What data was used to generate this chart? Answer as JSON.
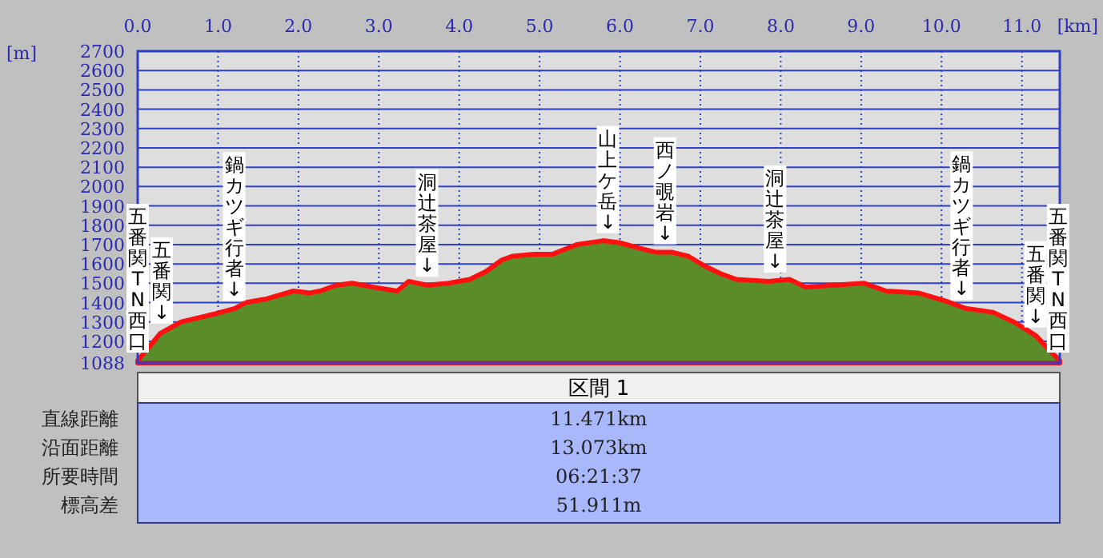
{
  "chart_data": {
    "type": "area",
    "xlabel": "[km]",
    "ylabel": "[m]",
    "xlim": [
      0,
      11.471
    ],
    "ylim": [
      1088,
      2700
    ],
    "xticks": [
      {
        "value": 0,
        "label": "0.0"
      },
      {
        "value": 1,
        "label": "1.0"
      },
      {
        "value": 2,
        "label": "2.0"
      },
      {
        "value": 3,
        "label": "3.0"
      },
      {
        "value": 4,
        "label": "4.0"
      },
      {
        "value": 5,
        "label": "5.0"
      },
      {
        "value": 6,
        "label": "6.0"
      },
      {
        "value": 7,
        "label": "7.0"
      },
      {
        "value": 8,
        "label": "8.0"
      },
      {
        "value": 9,
        "label": "9.0"
      },
      {
        "value": 10,
        "label": "10.0"
      },
      {
        "value": 11,
        "label": "11.0"
      }
    ],
    "yticks": [
      1088,
      1200,
      1300,
      1400,
      1500,
      1600,
      1700,
      1800,
      1900,
      2000,
      2100,
      2200,
      2300,
      2400,
      2500,
      2600,
      2700
    ],
    "grid": true,
    "x": [
      0,
      0.28,
      0.54,
      0.94,
      1.21,
      1.34,
      1.61,
      1.94,
      2.14,
      2.27,
      2.47,
      2.67,
      2.93,
      3.23,
      3.37,
      3.6,
      3.87,
      4.13,
      4.33,
      4.53,
      4.66,
      4.93,
      5.16,
      5.46,
      5.79,
      5.99,
      6.26,
      6.45,
      6.65,
      6.85,
      7.05,
      7.25,
      7.45,
      7.85,
      8.11,
      8.31,
      8.65,
      9.04,
      9.31,
      9.71,
      10.04,
      10.3,
      10.64,
      10.9,
      11.17,
      11.4,
      11.471
    ],
    "series": [
      {
        "color": "#5b8c2a",
        "values": [
          1100,
          1240,
          1300,
          1340,
          1370,
          1400,
          1420,
          1460,
          1450,
          1460,
          1490,
          1500,
          1480,
          1460,
          1510,
          1490,
          1500,
          1520,
          1560,
          1620,
          1640,
          1650,
          1650,
          1700,
          1720,
          1710,
          1680,
          1660,
          1660,
          1640,
          1590,
          1550,
          1520,
          1510,
          1520,
          1480,
          1490,
          1500,
          1460,
          1450,
          1410,
          1370,
          1350,
          1300,
          1230,
          1130,
          1100
        ]
      }
    ],
    "annotations": [
      {
        "text": "五番関TN西口",
        "x": 0,
        "y": 1100
      },
      {
        "text": "五番関↓",
        "x": 0.3,
        "y": 1250
      },
      {
        "text": "鍋カツギ行者↓",
        "x": 1.2,
        "y": 1368
      },
      {
        "text": "洞辻茶屋↓",
        "x": 3.6,
        "y": 1492
      },
      {
        "text": "山上ケ岳↓",
        "x": 5.85,
        "y": 1718
      },
      {
        "text": "西ノ覗岩↓",
        "x": 6.56,
        "y": 1660
      },
      {
        "text": "洞辻茶屋↓",
        "x": 7.93,
        "y": 1513
      },
      {
        "text": "鍋カツギ行者↓",
        "x": 10.25,
        "y": 1372
      },
      {
        "text": "五番関↓",
        "x": 11.17,
        "y": 1230
      },
      {
        "text": "五番関TN西口",
        "x": 11.45,
        "y": 1100
      },
      "区間 1",
      "直線距離",
      "11.471km",
      "沿面距離",
      "13.073km",
      "所要時間",
      "06:21:37",
      "標高差",
      "51.911m"
    ]
  }
}
